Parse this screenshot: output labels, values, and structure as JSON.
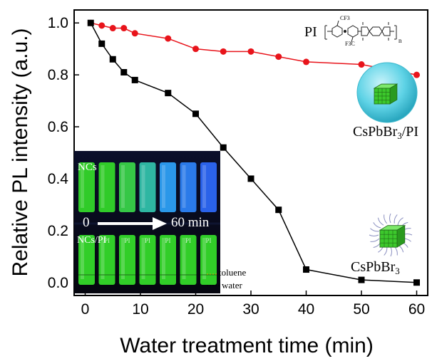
{
  "chart_data": {
    "type": "line",
    "xlabel": "Water treatment time (min)",
    "ylabel": "Relative PL intensity (a.u.)",
    "xlim": [
      -2,
      62
    ],
    "ylim": [
      -0.05,
      1.05
    ],
    "x_ticks": [
      "0",
      "10",
      "20",
      "30",
      "40",
      "50",
      "60"
    ],
    "y_ticks": [
      "0.0",
      "0.2",
      "0.4",
      "0.6",
      "0.8",
      "1.0"
    ],
    "grid": false,
    "series": [
      {
        "name": "CsPbBr3/PI",
        "color": "#e8141b",
        "marker": "circle",
        "x": [
          1,
          3,
          5,
          7,
          9,
          15,
          20,
          25,
          30,
          35,
          40,
          50,
          60
        ],
        "y": [
          1.0,
          0.99,
          0.98,
          0.98,
          0.96,
          0.94,
          0.9,
          0.89,
          0.89,
          0.87,
          0.85,
          0.84,
          0.8
        ]
      },
      {
        "name": "CsPbBr3",
        "color": "#000000",
        "marker": "square",
        "x": [
          1,
          3,
          5,
          7,
          9,
          15,
          20,
          25,
          30,
          35,
          40,
          50,
          60
        ],
        "y": [
          1.0,
          0.92,
          0.86,
          0.81,
          0.78,
          0.73,
          0.65,
          0.52,
          0.4,
          0.28,
          0.05,
          0.01,
          0.0
        ]
      }
    ],
    "annotations": {
      "pi_label": "PI",
      "cf3_top": "CF3",
      "cf3_bottom": "F3C",
      "n_sub": "n",
      "label_pi_composite": "CsPbBr3/PI",
      "label_bare": "CsPbBr3",
      "inset": {
        "top_label": "NCs",
        "bottom_label": "NCs/PI",
        "arrow_start": "0",
        "arrow_end": "60 min",
        "vial_tag": "PI",
        "layer_top": "toluene",
        "layer_bottom": "water"
      }
    },
    "colors": {
      "nc_green": "#35e02a",
      "nc_blue": "#2f6cff",
      "sphere": "#5fd3e6",
      "cube": "#3cc82c",
      "ligand": "#8a8fc0"
    }
  }
}
